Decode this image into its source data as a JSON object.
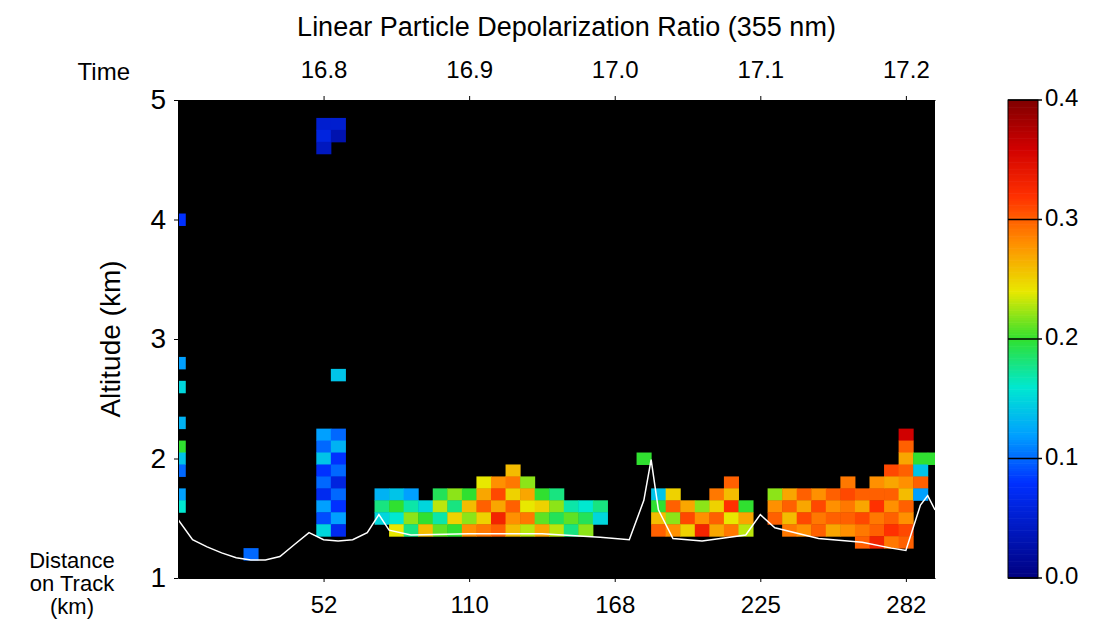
{
  "chart_data": {
    "type": "heatmap",
    "title": "Linear Particle Depolarization Ratio (355 nm)",
    "x_title": "Time",
    "x2_title": "Distance on Track (km)",
    "y_title": "Altitude (km)",
    "xlim": [
      16.7,
      17.22
    ],
    "xticks": [
      16.8,
      16.9,
      {
        "value": 17,
        "label": "17.0"
      },
      17.1,
      17.2
    ],
    "x2ticks": [
      {
        "value": 16.8,
        "label": "52"
      },
      {
        "value": 16.9,
        "label": "110"
      },
      {
        "value": 17,
        "label": "168"
      },
      {
        "value": 17.1,
        "label": "225"
      },
      {
        "value": 17.2,
        "label": "282"
      }
    ],
    "ylim": [
      1,
      5
    ],
    "yticks": [
      1,
      2,
      3,
      4,
      5
    ],
    "zlim": [
      0,
      0.4
    ],
    "zticks": [
      {
        "value": 0,
        "label": "0.0"
      },
      {
        "value": 0.1,
        "label": "0.1"
      },
      {
        "value": 0.2,
        "label": "0.2"
      },
      {
        "value": 0.3,
        "label": "0.3"
      },
      {
        "value": 0.4,
        "label": "0.4"
      }
    ],
    "cells": [
      [
        16.7,
        4.0,
        0.08
      ],
      [
        16.7,
        2.8,
        0.12
      ],
      [
        16.7,
        2.6,
        0.15
      ],
      [
        16.7,
        2.3,
        0.13
      ],
      [
        16.7,
        2.1,
        0.2
      ],
      [
        16.7,
        2.0,
        0.14
      ],
      [
        16.7,
        1.9,
        0.1
      ],
      [
        16.7,
        1.7,
        0.12
      ],
      [
        16.7,
        1.6,
        0.16
      ],
      [
        16.75,
        1.2,
        0.1
      ],
      [
        16.8,
        4.8,
        0.05
      ],
      [
        16.8,
        4.7,
        0.06
      ],
      [
        16.8,
        4.6,
        0.04
      ],
      [
        16.81,
        4.8,
        0.05
      ],
      [
        16.81,
        4.7,
        0.03
      ],
      [
        16.8,
        2.2,
        0.12
      ],
      [
        16.8,
        2.1,
        0.1
      ],
      [
        16.8,
        2.0,
        0.14
      ],
      [
        16.8,
        1.9,
        0.08
      ],
      [
        16.8,
        1.8,
        0.1
      ],
      [
        16.8,
        1.7,
        0.07
      ],
      [
        16.8,
        1.6,
        0.12
      ],
      [
        16.8,
        1.5,
        0.09
      ],
      [
        16.8,
        1.4,
        0.15
      ],
      [
        16.81,
        2.7,
        0.14
      ],
      [
        16.81,
        2.2,
        0.1
      ],
      [
        16.81,
        2.1,
        0.13
      ],
      [
        16.81,
        2.0,
        0.08
      ],
      [
        16.81,
        1.9,
        0.1
      ],
      [
        16.81,
        1.8,
        0.06
      ],
      [
        16.81,
        1.7,
        0.1
      ],
      [
        16.81,
        1.6,
        0.08
      ],
      [
        16.81,
        1.5,
        0.12
      ],
      [
        16.81,
        1.4,
        0.07
      ],
      [
        16.84,
        1.7,
        0.13
      ],
      [
        16.84,
        1.6,
        0.18
      ],
      [
        16.84,
        1.5,
        0.15
      ],
      [
        16.85,
        1.7,
        0.14
      ],
      [
        16.85,
        1.6,
        0.2
      ],
      [
        16.85,
        1.5,
        0.16
      ],
      [
        16.85,
        1.4,
        0.24
      ],
      [
        16.86,
        1.7,
        0.12
      ],
      [
        16.86,
        1.6,
        0.17
      ],
      [
        16.86,
        1.5,
        0.22
      ],
      [
        16.86,
        1.4,
        0.18
      ],
      [
        16.87,
        1.6,
        0.15
      ],
      [
        16.87,
        1.5,
        0.2
      ],
      [
        16.87,
        1.4,
        0.26
      ],
      [
        16.88,
        1.7,
        0.19
      ],
      [
        16.88,
        1.6,
        0.23
      ],
      [
        16.88,
        1.5,
        0.17
      ],
      [
        16.88,
        1.4,
        0.21
      ],
      [
        16.89,
        1.7,
        0.22
      ],
      [
        16.89,
        1.6,
        0.18
      ],
      [
        16.89,
        1.5,
        0.25
      ],
      [
        16.89,
        1.4,
        0.2
      ],
      [
        16.9,
        1.7,
        0.2
      ],
      [
        16.9,
        1.6,
        0.26
      ],
      [
        16.9,
        1.5,
        0.22
      ],
      [
        16.9,
        1.4,
        0.28
      ],
      [
        16.91,
        1.8,
        0.24
      ],
      [
        16.91,
        1.7,
        0.27
      ],
      [
        16.91,
        1.6,
        0.3
      ],
      [
        16.91,
        1.5,
        0.25
      ],
      [
        16.91,
        1.4,
        0.29
      ],
      [
        16.92,
        1.8,
        0.28
      ],
      [
        16.92,
        1.7,
        0.31
      ],
      [
        16.92,
        1.6,
        0.27
      ],
      [
        16.92,
        1.5,
        0.33
      ],
      [
        16.92,
        1.4,
        0.3
      ],
      [
        16.93,
        1.9,
        0.26
      ],
      [
        16.93,
        1.8,
        0.29
      ],
      [
        16.93,
        1.7,
        0.25
      ],
      [
        16.93,
        1.6,
        0.3
      ],
      [
        16.93,
        1.5,
        0.28
      ],
      [
        16.93,
        1.4,
        0.26
      ],
      [
        16.94,
        1.8,
        0.22
      ],
      [
        16.94,
        1.7,
        0.27
      ],
      [
        16.94,
        1.6,
        0.24
      ],
      [
        16.94,
        1.5,
        0.29
      ],
      [
        16.94,
        1.4,
        0.23
      ],
      [
        16.95,
        1.7,
        0.2
      ],
      [
        16.95,
        1.6,
        0.25
      ],
      [
        16.95,
        1.5,
        0.21
      ],
      [
        16.95,
        1.4,
        0.27
      ],
      [
        16.96,
        1.7,
        0.18
      ],
      [
        16.96,
        1.6,
        0.22
      ],
      [
        16.96,
        1.5,
        0.19
      ],
      [
        16.96,
        1.4,
        0.23
      ],
      [
        16.97,
        1.6,
        0.17
      ],
      [
        16.97,
        1.5,
        0.21
      ],
      [
        16.97,
        1.4,
        0.18
      ],
      [
        16.98,
        1.6,
        0.16
      ],
      [
        16.98,
        1.5,
        0.19
      ],
      [
        16.98,
        1.4,
        0.22
      ],
      [
        16.99,
        1.6,
        0.18
      ],
      [
        16.99,
        1.5,
        0.15
      ],
      [
        17.02,
        2.0,
        0.2
      ],
      [
        17.03,
        1.7,
        0.14
      ],
      [
        17.03,
        1.6,
        0.2
      ],
      [
        17.03,
        1.5,
        0.26
      ],
      [
        17.03,
        1.4,
        0.3
      ],
      [
        17.04,
        1.7,
        0.25
      ],
      [
        17.04,
        1.6,
        0.3
      ],
      [
        17.04,
        1.5,
        0.22
      ],
      [
        17.04,
        1.4,
        0.28
      ],
      [
        17.05,
        1.6,
        0.27
      ],
      [
        17.05,
        1.5,
        0.31
      ],
      [
        17.05,
        1.4,
        0.25
      ],
      [
        17.06,
        1.6,
        0.22
      ],
      [
        17.06,
        1.5,
        0.28
      ],
      [
        17.06,
        1.4,
        0.33
      ],
      [
        17.07,
        1.7,
        0.29
      ],
      [
        17.07,
        1.6,
        0.25
      ],
      [
        17.07,
        1.5,
        0.3
      ],
      [
        17.07,
        1.4,
        0.27
      ],
      [
        17.08,
        1.8,
        0.3
      ],
      [
        17.08,
        1.7,
        0.26
      ],
      [
        17.08,
        1.6,
        0.32
      ],
      [
        17.08,
        1.5,
        0.24
      ],
      [
        17.08,
        1.4,
        0.29
      ],
      [
        17.09,
        1.6,
        0.2
      ],
      [
        17.09,
        1.5,
        0.27
      ],
      [
        17.09,
        1.4,
        0.23
      ],
      [
        17.11,
        1.7,
        0.22
      ],
      [
        17.11,
        1.6,
        0.28
      ],
      [
        17.11,
        1.5,
        0.3
      ],
      [
        17.12,
        1.7,
        0.27
      ],
      [
        17.12,
        1.6,
        0.3
      ],
      [
        17.12,
        1.5,
        0.26
      ],
      [
        17.12,
        1.4,
        0.29
      ],
      [
        17.13,
        1.7,
        0.3
      ],
      [
        17.13,
        1.6,
        0.27
      ],
      [
        17.13,
        1.5,
        0.31
      ],
      [
        17.13,
        1.4,
        0.28
      ],
      [
        17.14,
        1.7,
        0.28
      ],
      [
        17.14,
        1.6,
        0.31
      ],
      [
        17.14,
        1.5,
        0.29
      ],
      [
        17.14,
        1.4,
        0.3
      ],
      [
        17.15,
        1.7,
        0.3
      ],
      [
        17.15,
        1.6,
        0.28
      ],
      [
        17.15,
        1.5,
        0.3
      ],
      [
        17.15,
        1.4,
        0.27
      ],
      [
        17.16,
        1.8,
        0.29
      ],
      [
        17.16,
        1.7,
        0.31
      ],
      [
        17.16,
        1.6,
        0.29
      ],
      [
        17.16,
        1.5,
        0.3
      ],
      [
        17.16,
        1.4,
        0.28
      ],
      [
        17.17,
        1.7,
        0.3
      ],
      [
        17.17,
        1.6,
        0.27
      ],
      [
        17.17,
        1.5,
        0.31
      ],
      [
        17.17,
        1.4,
        0.29
      ],
      [
        17.17,
        1.3,
        0.3
      ],
      [
        17.18,
        1.8,
        0.28
      ],
      [
        17.18,
        1.7,
        0.3
      ],
      [
        17.18,
        1.6,
        0.32
      ],
      [
        17.18,
        1.5,
        0.29
      ],
      [
        17.18,
        1.4,
        0.3
      ],
      [
        17.18,
        1.3,
        0.33
      ],
      [
        17.19,
        1.9,
        0.31
      ],
      [
        17.19,
        1.8,
        0.27
      ],
      [
        17.19,
        1.7,
        0.3
      ],
      [
        17.19,
        1.6,
        0.28
      ],
      [
        17.19,
        1.5,
        0.3
      ],
      [
        17.19,
        1.4,
        0.32
      ],
      [
        17.19,
        1.3,
        0.29
      ],
      [
        17.2,
        2.2,
        0.36
      ],
      [
        17.2,
        2.1,
        0.3
      ],
      [
        17.2,
        2.0,
        0.27
      ],
      [
        17.2,
        1.9,
        0.3
      ],
      [
        17.2,
        1.8,
        0.28
      ],
      [
        17.2,
        1.7,
        0.26
      ],
      [
        17.2,
        1.6,
        0.3
      ],
      [
        17.2,
        1.5,
        0.28
      ],
      [
        17.2,
        1.4,
        0.31
      ],
      [
        17.2,
        1.3,
        0.3
      ],
      [
        17.21,
        2.0,
        0.2
      ],
      [
        17.21,
        1.9,
        0.14
      ],
      [
        17.21,
        1.8,
        0.3
      ],
      [
        17.21,
        1.7,
        0.12
      ],
      [
        17.22,
        2.0,
        0.2
      ]
    ],
    "series": [
      {
        "type": "line",
        "color": "#ffffff",
        "x": [
          16.7,
          16.71,
          16.72,
          16.73,
          16.74,
          16.75,
          16.76,
          16.77,
          16.78,
          16.79,
          16.8,
          16.81,
          16.82,
          16.83,
          16.838,
          16.845,
          16.86,
          16.9,
          16.95,
          16.99,
          17.01,
          17.02,
          17.025,
          17.03,
          17.04,
          17.06,
          17.09,
          17.1,
          17.11,
          17.14,
          17.17,
          17.19,
          17.2,
          17.21,
          17.215,
          17.22
        ],
        "values": [
          1.49,
          1.32,
          1.26,
          1.21,
          1.17,
          1.15,
          1.15,
          1.18,
          1.28,
          1.38,
          1.32,
          1.31,
          1.32,
          1.38,
          1.53,
          1.4,
          1.36,
          1.37,
          1.37,
          1.34,
          1.32,
          1.65,
          1.99,
          1.57,
          1.33,
          1.31,
          1.36,
          1.53,
          1.42,
          1.33,
          1.3,
          1.25,
          1.23,
          1.61,
          1.69,
          1.57
        ]
      }
    ]
  }
}
